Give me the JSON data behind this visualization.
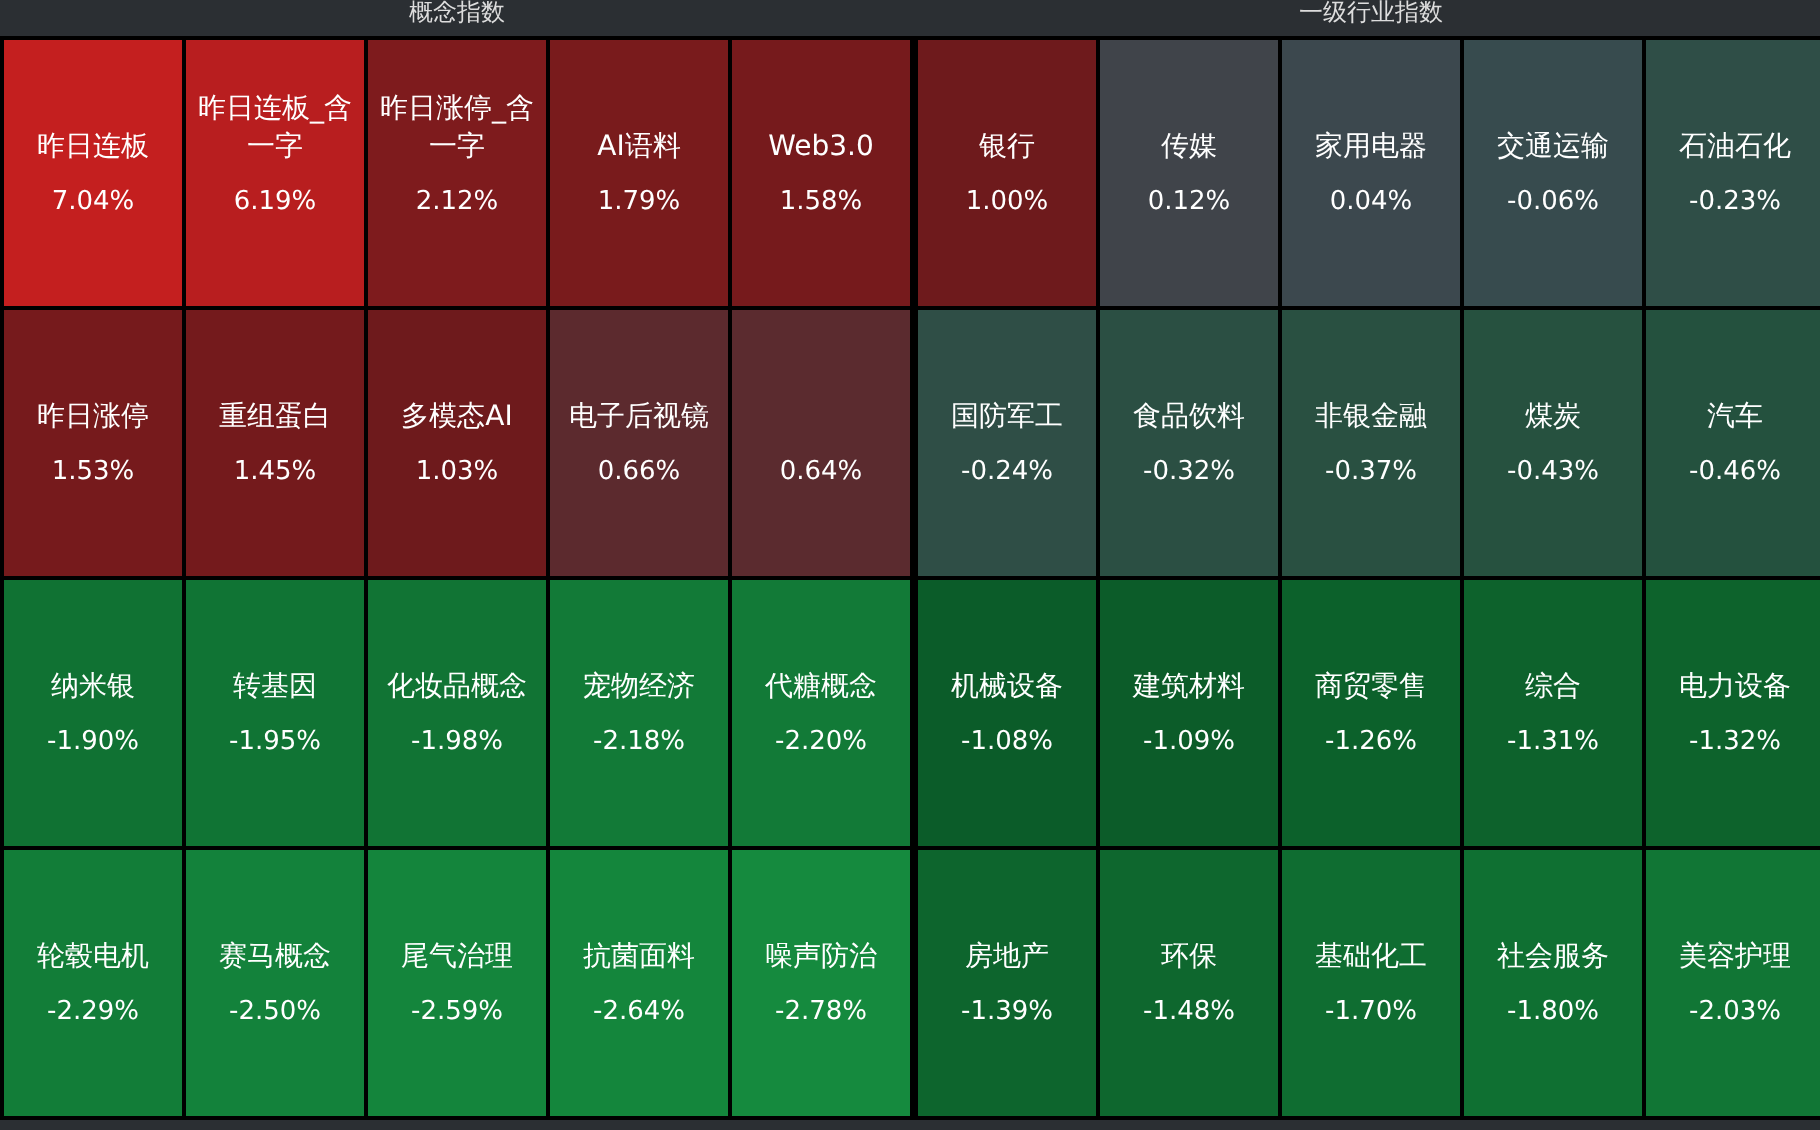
{
  "chart_data": [
    {
      "type": "other",
      "title": "概念指数",
      "categories": [
        "昨日连板",
        "昨日连板_含一字",
        "昨日涨停_含一字",
        "AI语料",
        "Web3.0",
        "昨日涨停",
        "重组蛋白",
        "多模态AI",
        "电子后视镜",
        null,
        "纳米银",
        "转基因",
        "化妆品概念",
        "宠物经济",
        "代糖概念",
        "轮毂电机",
        "赛马概念",
        "尾气治理",
        "抗菌面料",
        "噪声防治"
      ],
      "values": [
        7.04,
        6.19,
        2.12,
        1.79,
        1.58,
        1.53,
        1.45,
        1.03,
        0.66,
        0.64,
        -1.9,
        -1.95,
        -1.98,
        -2.18,
        -2.2,
        -2.29,
        -2.5,
        -2.59,
        -2.64,
        -2.78
      ],
      "value_labels": [
        "7.04%",
        "6.19%",
        "2.12%",
        "1.79%",
        "1.58%",
        "1.53%",
        "1.45%",
        "1.03%",
        "0.66%",
        "0.64%",
        "-1.90%",
        "-1.95%",
        "-1.98%",
        "-2.18%",
        "-2.20%",
        "-2.29%",
        "-2.50%",
        "-2.59%",
        "-2.64%",
        "-2.78%"
      ]
    },
    {
      "type": "other",
      "title": "一级行业指数",
      "categories": [
        "银行",
        "传媒",
        "家用电器",
        "交通运输",
        "石油石化",
        "国防军工",
        "食品饮料",
        "非银金融",
        "煤炭",
        "汽车",
        "机械设备",
        "建筑材料",
        "商贸零售",
        "综合",
        "电力设备",
        "房地产",
        "环保",
        "基础化工",
        "社会服务",
        "美容护理"
      ],
      "values": [
        1.0,
        0.12,
        0.04,
        -0.06,
        -0.23,
        -0.24,
        -0.32,
        -0.37,
        -0.43,
        -0.46,
        -1.08,
        -1.09,
        -1.26,
        -1.31,
        -1.32,
        -1.39,
        -1.48,
        -1.7,
        -1.8,
        -2.03
      ],
      "value_labels": [
        "1.00%",
        "0.12%",
        "0.04%",
        "-0.06%",
        "-0.23%",
        "-0.24%",
        "-0.32%",
        "-0.37%",
        "-0.43%",
        "-0.46%",
        "-1.08%",
        "-1.09%",
        "-1.26%",
        "-1.31%",
        "-1.32%",
        "-1.39%",
        "-1.48%",
        "-1.70%",
        "-1.80%",
        "-2.03%"
      ]
    }
  ]
}
